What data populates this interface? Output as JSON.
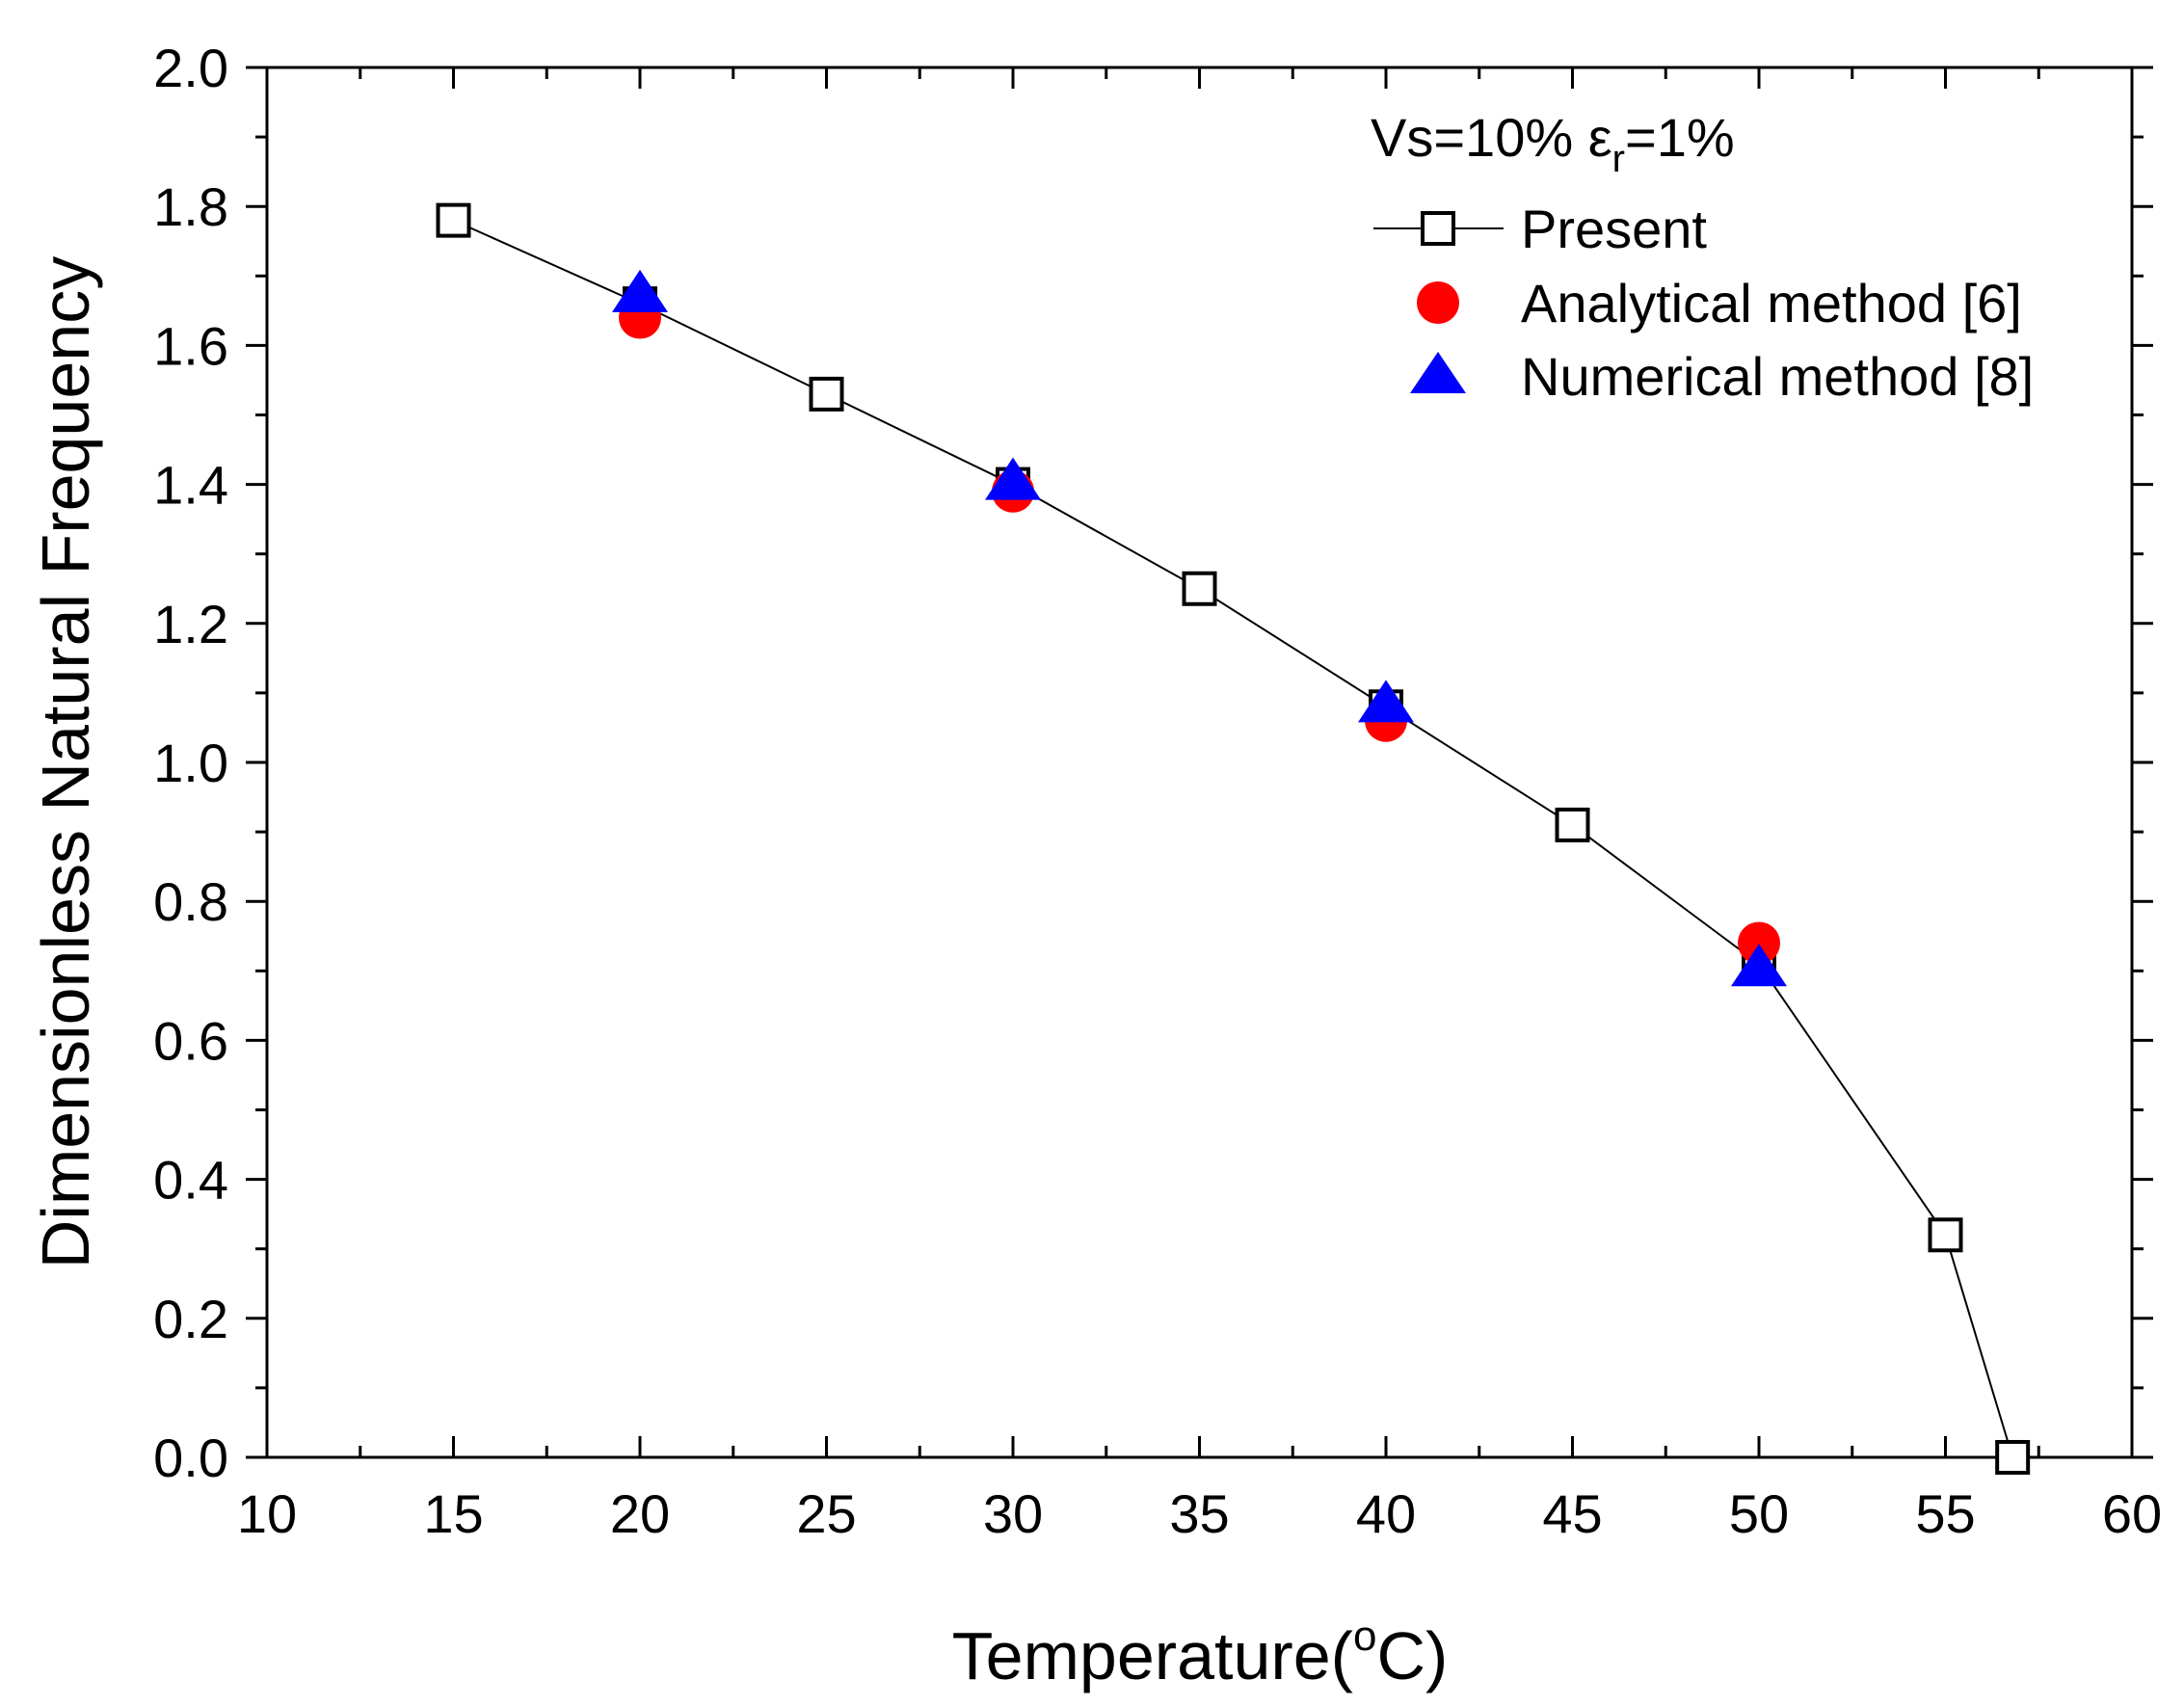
{
  "chart_data": {
    "type": "scatter",
    "xlabel": "Temperature(°C)",
    "xlabel_main": "Temperature(",
    "xlabel_sup": "o",
    "xlabel_end": "C)",
    "ylabel": "Dimensionless Natural Frequency",
    "xlim": [
      10,
      60
    ],
    "ylim": [
      0.0,
      2.0
    ],
    "x_ticks": [
      "10",
      "15",
      "20",
      "25",
      "30",
      "35",
      "40",
      "45",
      "50",
      "55",
      "60"
    ],
    "y_ticks": [
      "0.0",
      "0.2",
      "0.4",
      "0.6",
      "0.8",
      "1.0",
      "1.2",
      "1.4",
      "1.6",
      "1.8",
      "2.0"
    ],
    "grid": false,
    "legend_position": "top-right",
    "annotation": {
      "text": "Vs=10% εr=1%",
      "part1": "Vs=10% ",
      "epsilon": "ε",
      "subscript": "r",
      "part2": "=1%"
    },
    "series": [
      {
        "name": "Present",
        "marker": "open-square",
        "line": true,
        "color": "#000000",
        "x": [
          15,
          20,
          25,
          30,
          35,
          40,
          45,
          50,
          55,
          56.8
        ],
        "y": [
          1.78,
          1.66,
          1.53,
          1.4,
          1.25,
          1.08,
          0.91,
          0.71,
          0.32,
          0.0
        ]
      },
      {
        "name": "Analytical method [6]",
        "marker": "filled-circle",
        "line": false,
        "color": "#ff0000",
        "x": [
          20,
          30,
          40,
          50
        ],
        "y": [
          1.64,
          1.39,
          1.06,
          0.74
        ]
      },
      {
        "name": "Numerical method [8]",
        "marker": "filled-triangle",
        "line": false,
        "color": "#0000ff",
        "x": [
          20,
          30,
          40,
          50
        ],
        "y": [
          1.67,
          1.4,
          1.08,
          0.7
        ]
      }
    ]
  }
}
